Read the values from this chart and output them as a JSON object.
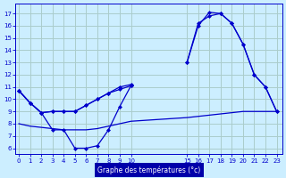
{
  "bg_color": "#cceeff",
  "grid_color": "#aacccc",
  "line_color": "#0000cc",
  "xlabel": "Graphe des températures (°c)",
  "xlabel_bg": "#0000aa",
  "yticks": [
    6,
    7,
    8,
    9,
    10,
    11,
    12,
    13,
    14,
    15,
    16,
    17
  ],
  "xticks": [
    0,
    1,
    2,
    3,
    4,
    5,
    6,
    7,
    8,
    9,
    10,
    15,
    16,
    17,
    18,
    19,
    20,
    21,
    22,
    23
  ],
  "xlim": [
    -0.3,
    23.5
  ],
  "ylim": [
    5.5,
    17.8
  ],
  "curve1_left_x": [
    0,
    1,
    2,
    3,
    4,
    5,
    6,
    7,
    8,
    9,
    10
  ],
  "curve1_left_y": [
    10.7,
    9.7,
    8.9,
    9.0,
    9.0,
    9.0,
    9.5,
    10.0,
    10.5,
    11.0,
    11.2
  ],
  "curve1_right_x": [
    15,
    16,
    17,
    18,
    19,
    20,
    21,
    22,
    23
  ],
  "curve1_right_y": [
    13.0,
    16.0,
    17.1,
    17.0,
    16.2,
    14.5,
    12.0,
    11.0,
    9.0
  ],
  "curve2_left_x": [
    0,
    1,
    2,
    3,
    4,
    5,
    6,
    7,
    8,
    9,
    10
  ],
  "curve2_left_y": [
    10.7,
    9.7,
    8.9,
    9.0,
    9.0,
    9.0,
    9.5,
    10.0,
    10.5,
    10.8,
    11.1
  ],
  "curve2_right_x": [
    15,
    16,
    17,
    18,
    19,
    20,
    21,
    22,
    23
  ],
  "curve2_right_y": [
    13.0,
    16.2,
    16.8,
    17.0,
    16.2,
    14.5,
    12.0,
    11.0,
    9.0
  ],
  "curve3_x": [
    0,
    1,
    2,
    3,
    4,
    5,
    6,
    7,
    8,
    9,
    10
  ],
  "curve3_y": [
    10.7,
    9.7,
    8.9,
    7.5,
    7.5,
    6.0,
    6.0,
    6.2,
    7.5,
    9.4,
    11.1
  ],
  "curve4_x": [
    0,
    1,
    2,
    3,
    4,
    5,
    6,
    7,
    8,
    9,
    10,
    15,
    16,
    17,
    18,
    19,
    20,
    21,
    22,
    23
  ],
  "curve4_y": [
    8.0,
    7.8,
    7.7,
    7.6,
    7.5,
    7.5,
    7.5,
    7.6,
    7.8,
    8.0,
    8.2,
    8.5,
    8.6,
    8.7,
    8.8,
    8.9,
    9.0,
    9.0,
    9.0,
    9.0
  ]
}
